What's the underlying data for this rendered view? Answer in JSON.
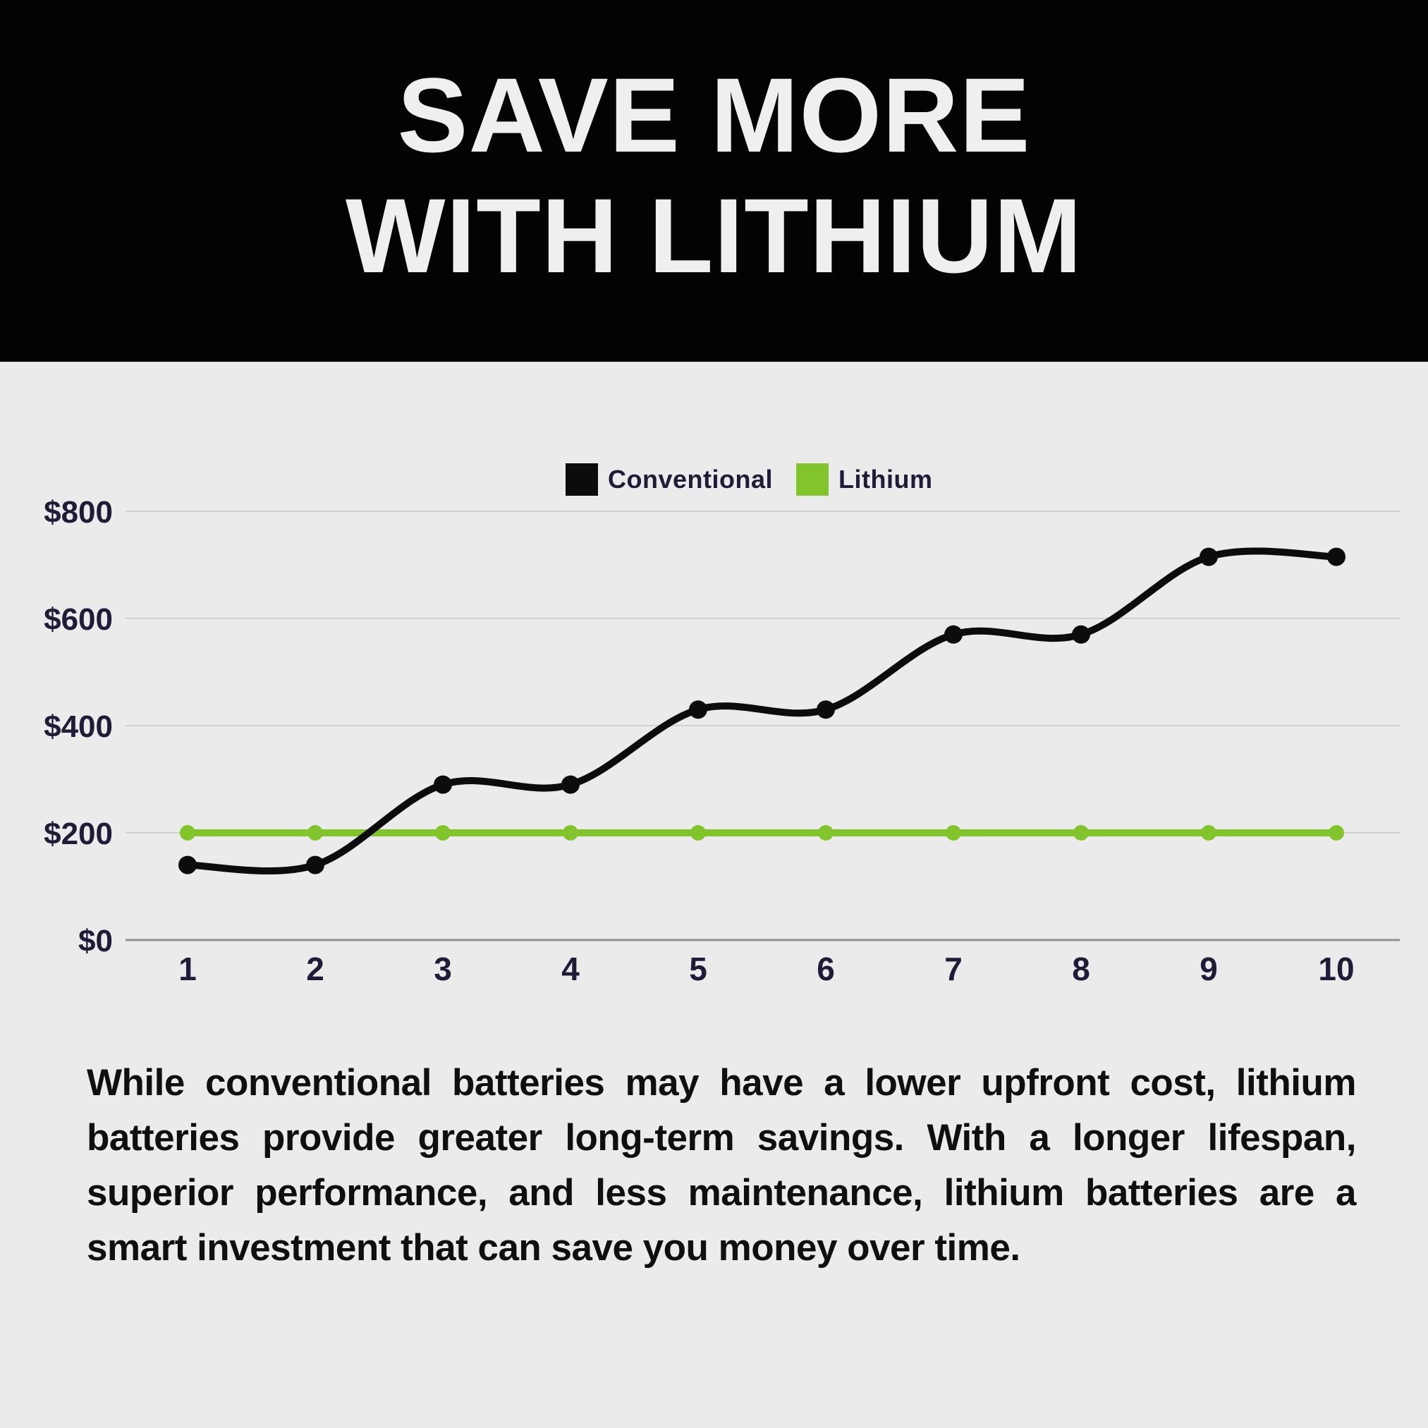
{
  "header": {
    "title_line1": "SAVE MORE",
    "title_line2": "WITH LITHIUM"
  },
  "chart_data": {
    "type": "line",
    "x": [
      1,
      2,
      3,
      4,
      5,
      6,
      7,
      8,
      9,
      10
    ],
    "x_tick_labels": [
      "1",
      "2",
      "3",
      "4",
      "5",
      "6",
      "7",
      "8",
      "9",
      "10"
    ],
    "y_ticks": [
      0,
      200,
      400,
      600,
      800
    ],
    "y_tick_labels": [
      "$0",
      "$200",
      "$400",
      "$600",
      "$800"
    ],
    "ylim": [
      0,
      800
    ],
    "grid": true,
    "legend_position": "top-center",
    "series": [
      {
        "name": "Conventional",
        "color": "#0C0C0C",
        "values": [
          140,
          140,
          290,
          290,
          430,
          430,
          570,
          570,
          715,
          715
        ],
        "smooth": true,
        "marker_radius": 13,
        "line_width": 10
      },
      {
        "name": "Lithium",
        "color": "#82C42B",
        "values": [
          200,
          200,
          200,
          200,
          200,
          200,
          200,
          200,
          200,
          200
        ],
        "smooth": false,
        "marker_radius": 11,
        "line_width": 10
      }
    ]
  },
  "description": {
    "text": "While conventional batteries may have a lower upfront cost, lithium batteries provide greater long-term savings. With a longer lifespan, superior performance, and less maintenance, lithium batteries are a smart investment that can save you money over time."
  },
  "colors": {
    "header_background": "#030303",
    "title_text": "#F0EFEF",
    "page_background": "#ECEBEB",
    "axis_text": "#201C38",
    "gridline": "#D2D1D1",
    "baseline_axis": "#8F8F8F",
    "conventional_line": "#0C0C0C",
    "lithium_line": "#82C42B",
    "paragraph_text": "#0F0F0F"
  }
}
